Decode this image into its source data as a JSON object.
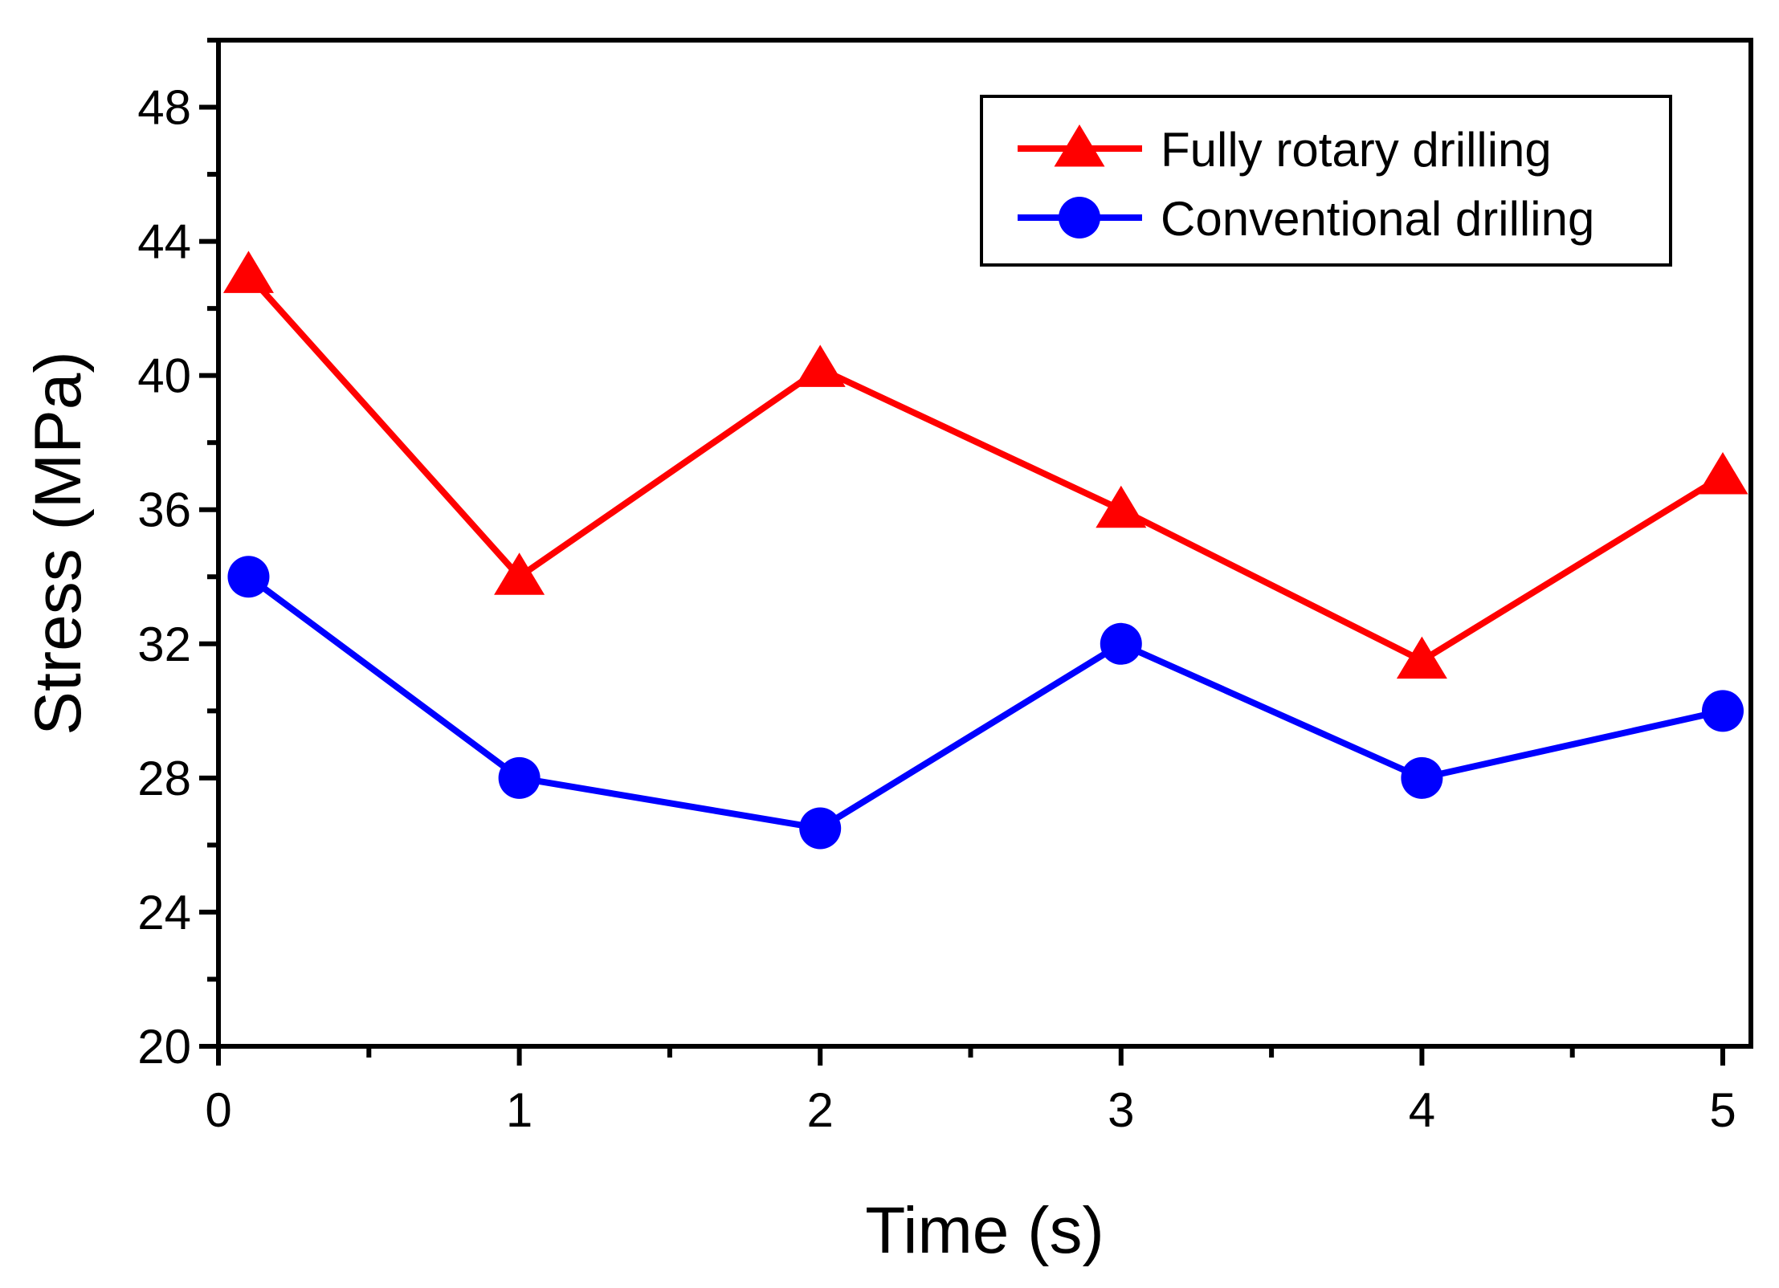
{
  "chart_data": {
    "type": "line",
    "title": "",
    "xlabel": "Time (s)",
    "ylabel": "Stress (MPa)",
    "xlim": [
      0,
      5
    ],
    "ylim": [
      20,
      50
    ],
    "xticks": [
      0,
      1,
      2,
      3,
      4,
      5
    ],
    "xtick_labels": [
      "0",
      "1",
      "2",
      "3",
      "4",
      "5"
    ],
    "xminor": [
      0.5,
      1.5,
      2.5,
      3.5,
      4.5
    ],
    "yticks": [
      20,
      24,
      28,
      32,
      36,
      40,
      44,
      48
    ],
    "ytick_labels": [
      "20",
      "24",
      "28",
      "32",
      "36",
      "40",
      "44",
      "48"
    ],
    "yminor": [
      22,
      26,
      30,
      34,
      38,
      42,
      46,
      50
    ],
    "grid": false,
    "legend_position": "top-right",
    "series": [
      {
        "name": "Fully rotary drilling",
        "color": "#ff0000",
        "marker": "triangle",
        "x": [
          0.1,
          1,
          2,
          3,
          4,
          5
        ],
        "y": [
          43,
          34,
          40.2,
          36,
          31.5,
          37
        ]
      },
      {
        "name": "Conventional drilling",
        "color": "#0000ff",
        "marker": "circle",
        "x": [
          0.1,
          1,
          2,
          3,
          4,
          5
        ],
        "y": [
          34,
          28,
          26.5,
          32,
          28,
          30
        ]
      }
    ]
  }
}
